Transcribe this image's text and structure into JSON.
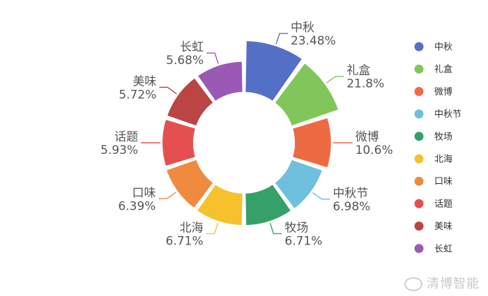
{
  "chart_data": {
    "type": "pie",
    "donut": true,
    "legend_position": "right",
    "slices": [
      {
        "name": "中秋",
        "value": 23.48,
        "label": "23.48%",
        "color": "#5470c6"
      },
      {
        "name": "礼盒",
        "value": 21.8,
        "label": "21.8%",
        "color": "#81c65a"
      },
      {
        "name": "微博",
        "value": 10.6,
        "label": "10.6%",
        "color": "#ee6a43"
      },
      {
        "name": "中秋节",
        "value": 6.98,
        "label": "6.98%",
        "color": "#6ec0de"
      },
      {
        "name": "牧场",
        "value": 6.71,
        "label": "6.71%",
        "color": "#35a06a"
      },
      {
        "name": "北海",
        "value": 6.71,
        "label": "6.71%",
        "color": "#f7c12e"
      },
      {
        "name": "口味",
        "value": 6.39,
        "label": "6.39%",
        "color": "#f08a3e"
      },
      {
        "name": "话题",
        "value": 5.93,
        "label": "5.93%",
        "color": "#e4504f"
      },
      {
        "name": "美味",
        "value": 5.72,
        "label": "5.72%",
        "color": "#bb4444"
      },
      {
        "name": "长虹",
        "value": 5.68,
        "label": "5.68%",
        "color": "#9b59b6"
      }
    ]
  },
  "watermark": "清博智能"
}
